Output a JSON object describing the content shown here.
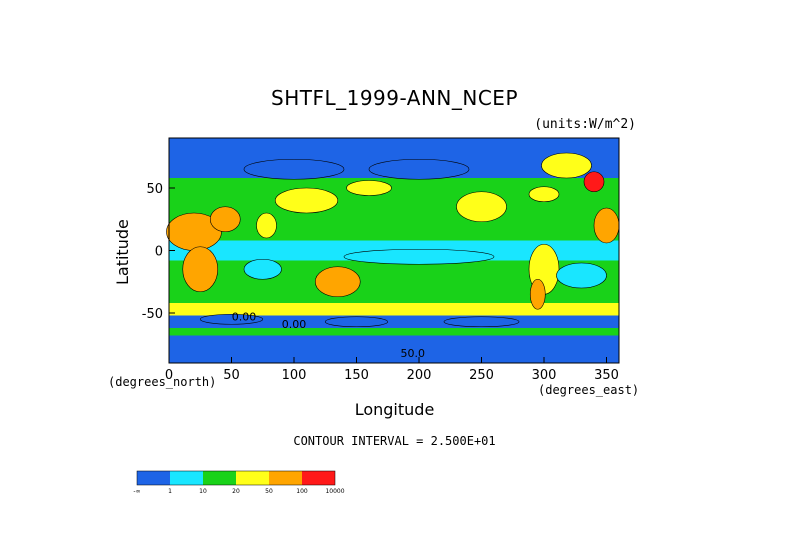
{
  "chart_data": {
    "type": "heatmap",
    "title": "SHTFL_1999-ANN_NCEP",
    "units": "(units:W/m^2)",
    "xlabel": "Longitude",
    "ylabel": "Latitude",
    "x_units_note": "(degrees_east)",
    "y_units_note": "(degrees_north)",
    "xlim": [
      0,
      360
    ],
    "ylim": [
      -90,
      90
    ],
    "x_ticks": [
      "0",
      "50",
      "100",
      "150",
      "200",
      "250",
      "300",
      "350"
    ],
    "y_ticks": [
      "50",
      "0",
      "-50"
    ],
    "contour_interval": "CONTOUR INTERVAL = 2.500E+01",
    "contour_labels": [
      "0.00",
      "0.00",
      "50.0"
    ],
    "colorbar": {
      "colors": [
        "#1e64e6",
        "#19e6ff",
        "#19d219",
        "#ffff19",
        "#ffa500",
        "#ff1919"
      ],
      "labels": [
        "-∞",
        "1",
        "10",
        "20",
        "50",
        "100",
        "10000"
      ]
    }
  }
}
